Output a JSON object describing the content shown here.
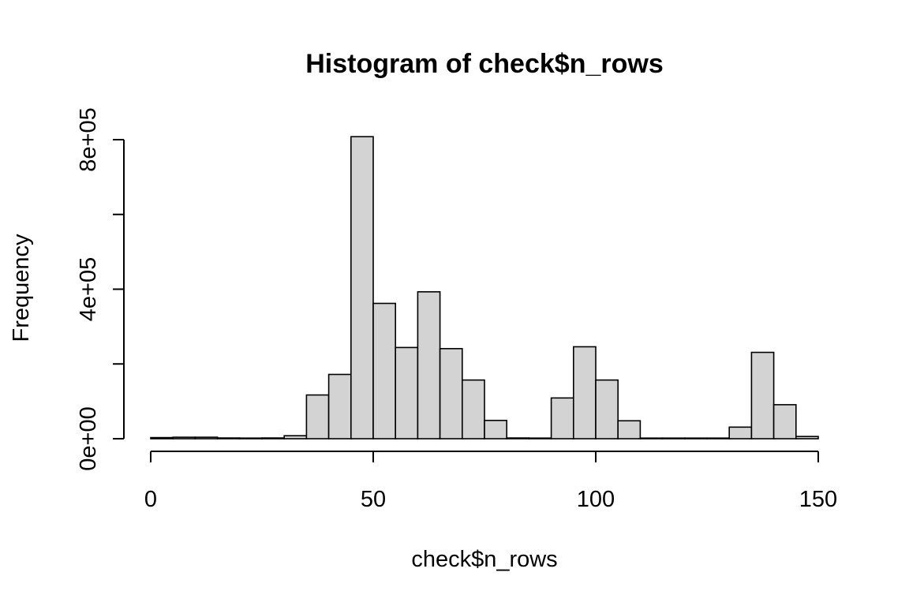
{
  "chart_data": {
    "type": "bar",
    "title": "Histogram of check$n_rows",
    "xlabel": "check$n_rows",
    "ylabel": "Frequency",
    "bin_width": 5,
    "bin_starts": [
      0,
      5,
      10,
      15,
      20,
      25,
      30,
      35,
      40,
      45,
      50,
      55,
      60,
      65,
      70,
      75,
      80,
      85,
      90,
      95,
      100,
      105,
      110,
      115,
      120,
      125,
      130,
      135,
      140,
      145
    ],
    "values": [
      3000,
      4000,
      4000,
      2000,
      1000,
      2000,
      8000,
      117000,
      172000,
      808000,
      362000,
      244000,
      393000,
      241000,
      157000,
      49000,
      2000,
      1000,
      109000,
      246000,
      157000,
      48000,
      1000,
      1000,
      500,
      500,
      31000,
      231000,
      91000,
      6000
    ],
    "xlim": [
      0,
      150
    ],
    "ylim": [
      0,
      800000
    ],
    "x_ticks": [
      0,
      50,
      100,
      150
    ],
    "x_tick_labels": [
      "0",
      "50",
      "100",
      "150"
    ],
    "y_ticks": [
      0,
      200000,
      400000,
      600000,
      800000
    ],
    "y_tick_labels": [
      "0e+00",
      "",
      "4e+05",
      "",
      "8e+05"
    ],
    "bar_color": "#d3d3d3",
    "edge_color": "#000000",
    "grid": false,
    "legend": "none"
  }
}
